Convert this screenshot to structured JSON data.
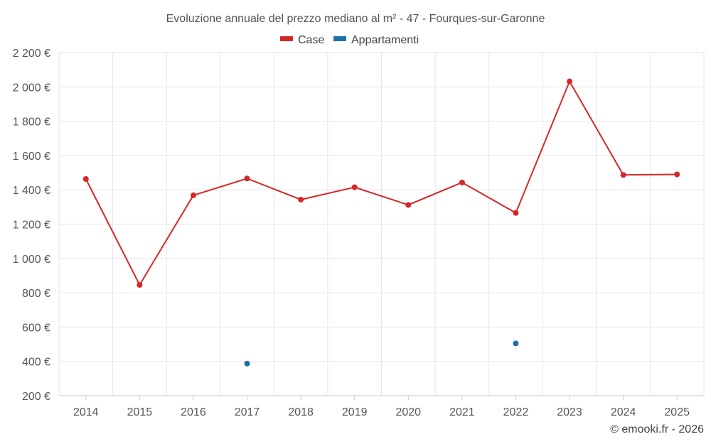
{
  "chart_data": {
    "type": "line",
    "title": "Evoluzione annuale del prezzo mediano al m² - 47 - Fourques-sur-Garonne",
    "categories": [
      "2014",
      "2015",
      "2016",
      "2017",
      "2018",
      "2019",
      "2020",
      "2021",
      "2022",
      "2023",
      "2024",
      "2025"
    ],
    "ylim": [
      200,
      2200
    ],
    "yticks": [
      200,
      400,
      600,
      800,
      1000,
      1200,
      1400,
      1600,
      1800,
      2000,
      2200
    ],
    "ytick_labels": [
      "200 €",
      "400 €",
      "600 €",
      "800 €",
      "1 000 €",
      "1 200 €",
      "1 400 €",
      "1 600 €",
      "1 800 €",
      "2 000 €",
      "2 200 €"
    ],
    "grid": true,
    "legend_position": "top-center",
    "series": [
      {
        "name": "Case",
        "color": "#d62728",
        "values": [
          1463,
          846,
          1368,
          1466,
          1343,
          1415,
          1312,
          1443,
          1265,
          2032,
          1487,
          1490
        ]
      },
      {
        "name": "Appartamenti",
        "color": "#1f6fa8",
        "values": [
          null,
          null,
          null,
          387,
          null,
          null,
          null,
          null,
          505,
          null,
          null,
          null
        ]
      }
    ],
    "credit": "© emooki.fr - 2026"
  }
}
